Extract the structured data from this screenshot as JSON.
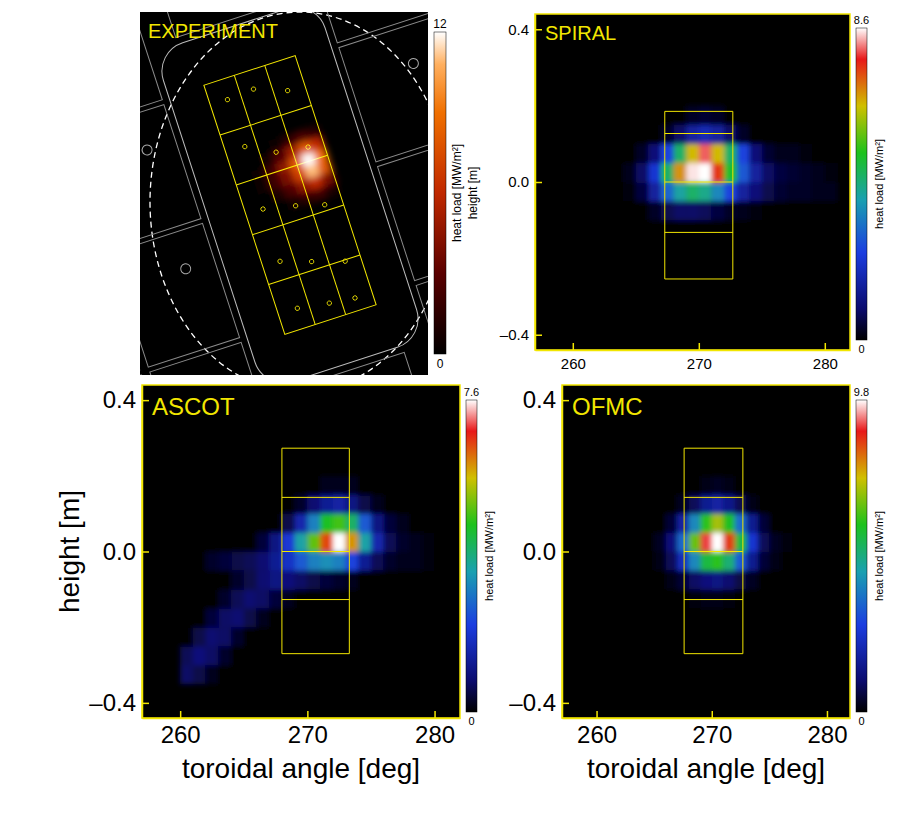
{
  "chart_data": [
    {
      "type": "image",
      "title": "EXPERIMENT",
      "tick_labels": false,
      "ylabel": "height [m]",
      "cells": [
        [
          0,
          0,
          0.5,
          1.5,
          2.5,
          1.5
        ],
        [
          0,
          0.8,
          2.5,
          5,
          8,
          6
        ],
        [
          0.5,
          2,
          4.5,
          8,
          12,
          9
        ],
        [
          0.5,
          2,
          4,
          7,
          11,
          8
        ],
        [
          0,
          1,
          2.5,
          4.5,
          6,
          4
        ],
        [
          0,
          0,
          0.8,
          1.5,
          2,
          1
        ]
      ],
      "colorbar": {
        "range": [
          0,
          12
        ],
        "ticks": [
          0,
          12
        ],
        "label": "heat load [MW/m²]"
      }
    },
    {
      "type": "heatmap",
      "title": "SPIRAL",
      "xlim": [
        257,
        282
      ],
      "ylim": [
        -0.44,
        0.44
      ],
      "xticks": [
        260,
        270,
        280
      ],
      "yticks": [
        {
          "value": -0.4,
          "label": "–0.4"
        },
        {
          "value": 0,
          "label": "0.0"
        },
        {
          "value": 0.4,
          "label": "0.4"
        }
      ],
      "x_edges": [
        260,
        261,
        262,
        263,
        264,
        265,
        266,
        267,
        268,
        269,
        270,
        271,
        272,
        273,
        274,
        275,
        276,
        277,
        278,
        279,
        280,
        281
      ],
      "y_edges": [
        -0.35,
        -0.3,
        -0.25,
        -0.2,
        -0.15,
        -0.1,
        -0.05,
        0,
        0.05,
        0.1,
        0.15,
        0.2
      ],
      "cells": [
        [
          0,
          0,
          0,
          0,
          0,
          0,
          0,
          0,
          0,
          0,
          0,
          0,
          0,
          0,
          0,
          0,
          0,
          0,
          0,
          0,
          0
        ],
        [
          0,
          0,
          0,
          0,
          0,
          0,
          0,
          0,
          0,
          0,
          0,
          0,
          0,
          0,
          0,
          0,
          0,
          0,
          0,
          0,
          0
        ],
        [
          0,
          0,
          0,
          0,
          0,
          0,
          0,
          0,
          0,
          0,
          0,
          0,
          0,
          0,
          0,
          0,
          0,
          0,
          0,
          0,
          0
        ],
        [
          0,
          0,
          0,
          0,
          0,
          0,
          0,
          0,
          0,
          0,
          0,
          0,
          0,
          0,
          0,
          0,
          0,
          0,
          0,
          0,
          0
        ],
        [
          0,
          0,
          0,
          0,
          0,
          0,
          0,
          0,
          0,
          0,
          0,
          0,
          0,
          0,
          0,
          0,
          0,
          0,
          0,
          0,
          0
        ],
        [
          0,
          0,
          0,
          0,
          0,
          0,
          0.3,
          0.6,
          0.8,
          0.8,
          0.7,
          0.5,
          0.3,
          0.2,
          0.1,
          0,
          0,
          0,
          0,
          0,
          0
        ],
        [
          0,
          0,
          0,
          0,
          0.1,
          0.5,
          1.5,
          3,
          4,
          4.5,
          4.2,
          3.5,
          2.5,
          1.5,
          1,
          0.6,
          0.4,
          0.3,
          0.3,
          0.2,
          0.2
        ],
        [
          0,
          0,
          0,
          0,
          0.2,
          0.8,
          2.2,
          4.5,
          6.8,
          8.5,
          8.6,
          7.5,
          5,
          2.8,
          1.5,
          0.8,
          0.5,
          0.4,
          0.3,
          0.2,
          0.1
        ],
        [
          0,
          0,
          0,
          0,
          0,
          0.3,
          1,
          2.5,
          4.5,
          6.5,
          8,
          6.5,
          4.5,
          2.5,
          1,
          0.4,
          0.2,
          0.2,
          0.1,
          0,
          0
        ],
        [
          0,
          0,
          0,
          0,
          0,
          0,
          0,
          0.3,
          0.8,
          1.5,
          1.8,
          1.5,
          0.8,
          0.3,
          0,
          0,
          0,
          0,
          0,
          0,
          0
        ],
        [
          0,
          0,
          0,
          0,
          0,
          0,
          0,
          0,
          0,
          0.3,
          0.4,
          0.3,
          0,
          0,
          0,
          0,
          0,
          0,
          0,
          0,
          0
        ]
      ],
      "tile": {
        "x": [
          267.3,
          272.7
        ],
        "y": [
          -0.254,
          -0.132,
          0,
          0.127,
          0.185
        ]
      },
      "colorbar": {
        "range": [
          0,
          8.6
        ],
        "ticks": [
          0,
          8.6
        ],
        "label": "heat load [MW/m²]"
      }
    },
    {
      "type": "heatmap",
      "title": "ASCOT",
      "xlabel": "toroidal angle [deg]",
      "ylabel": "height [m]",
      "xlim": [
        257,
        282
      ],
      "ylim": [
        -0.44,
        0.44
      ],
      "xticks": [
        260,
        270,
        280
      ],
      "yticks": [
        {
          "value": -0.4,
          "label": "–0.4"
        },
        {
          "value": 0,
          "label": "0.0"
        },
        {
          "value": 0.4,
          "label": "0.4"
        }
      ],
      "x_edges": [
        260,
        261,
        262,
        263,
        264,
        265,
        266,
        267,
        268,
        269,
        270,
        271,
        272,
        273,
        274,
        275,
        276,
        277,
        278,
        279,
        280,
        281
      ],
      "y_edges": [
        -0.35,
        -0.3,
        -0.25,
        -0.2,
        -0.15,
        -0.1,
        -0.05,
        0,
        0.05,
        0.1,
        0.15,
        0.2
      ],
      "cells": [
        [
          0.7,
          0.5,
          0.2,
          0,
          0,
          0,
          0,
          0,
          0,
          0,
          0,
          0,
          0,
          0,
          0,
          0,
          0,
          0,
          0,
          0,
          0
        ],
        [
          0.6,
          0.9,
          0.7,
          0.3,
          0,
          0,
          0,
          0,
          0,
          0,
          0,
          0,
          0,
          0,
          0,
          0,
          0,
          0,
          0,
          0,
          0
        ],
        [
          0,
          0.5,
          0.8,
          0.7,
          0.3,
          0,
          0,
          0,
          0,
          0,
          0,
          0,
          0,
          0,
          0,
          0,
          0,
          0,
          0,
          0,
          0
        ],
        [
          0,
          0,
          0.4,
          0.7,
          0.8,
          0.5,
          0.2,
          0,
          0,
          0,
          0,
          0,
          0,
          0,
          0,
          0,
          0,
          0,
          0,
          0,
          0
        ],
        [
          0,
          0,
          0,
          0.3,
          0.6,
          0.8,
          0.7,
          0.4,
          0.2,
          0,
          0,
          0,
          0,
          0,
          0,
          0,
          0,
          0,
          0,
          0,
          0
        ],
        [
          0,
          0,
          0,
          0,
          0.3,
          0.5,
          0.8,
          1,
          0.9,
          0.7,
          0.5,
          0.4,
          0.3,
          0.2,
          0,
          0,
          0,
          0,
          0,
          0,
          0
        ],
        [
          0,
          0,
          0.3,
          0.4,
          0.5,
          0.6,
          0.8,
          1.2,
          1.8,
          2.5,
          3,
          3.2,
          3,
          2.2,
          1.2,
          0.6,
          0.3,
          0.2,
          0.2,
          0.1,
          0
        ],
        [
          0,
          0,
          0,
          0,
          0,
          0,
          0.4,
          1,
          2,
          3.5,
          5,
          6.5,
          7.6,
          6,
          3.5,
          1.5,
          0.6,
          0.3,
          0.2,
          0.1,
          0
        ],
        [
          0,
          0,
          0,
          0,
          0,
          0,
          0,
          0,
          0.5,
          1.5,
          3,
          4.5,
          4.8,
          4,
          2.5,
          1,
          0.4,
          0.2,
          0,
          0,
          0
        ],
        [
          0,
          0,
          0,
          0,
          0,
          0,
          0,
          0,
          0,
          0.3,
          0.8,
          1.2,
          1.4,
          1,
          0.5,
          0.2,
          0,
          0,
          0,
          0,
          0
        ],
        [
          0,
          0,
          0,
          0,
          0,
          0,
          0,
          0,
          0,
          0,
          0,
          0.2,
          0.2,
          0.2,
          0,
          0,
          0,
          0,
          0,
          0,
          0
        ]
      ],
      "tile": {
        "x": [
          268,
          273.3
        ],
        "y": [
          -0.27,
          -0.127,
          0,
          0.143,
          0.273
        ]
      },
      "colorbar": {
        "range": [
          0,
          7.6
        ],
        "ticks": [
          0,
          7.6
        ],
        "label": "heat load [MW/m²]"
      }
    },
    {
      "type": "heatmap",
      "title": "OFMC",
      "xlabel": "toroidal angle [deg]",
      "xlim": [
        257,
        282
      ],
      "ylim": [
        -0.44,
        0.44
      ],
      "xticks": [
        260,
        270,
        280
      ],
      "yticks": [
        {
          "value": -0.4,
          "label": "–0.4"
        },
        {
          "value": 0,
          "label": "0.0"
        },
        {
          "value": 0.4,
          "label": "0.4"
        }
      ],
      "x_edges": [
        260,
        261,
        262,
        263,
        264,
        265,
        266,
        267,
        268,
        269,
        270,
        271,
        272,
        273,
        274,
        275,
        276,
        277,
        278,
        279,
        280,
        281
      ],
      "y_edges": [
        -0.35,
        -0.3,
        -0.25,
        -0.2,
        -0.15,
        -0.1,
        -0.05,
        0,
        0.05,
        0.1,
        0.15,
        0.2
      ],
      "cells": [
        [
          0,
          0,
          0,
          0,
          0,
          0,
          0,
          0,
          0,
          0,
          0,
          0,
          0,
          0,
          0,
          0,
          0,
          0,
          0,
          0,
          0
        ],
        [
          0,
          0,
          0,
          0,
          0,
          0,
          0,
          0,
          0,
          0,
          0,
          0,
          0,
          0,
          0,
          0,
          0,
          0,
          0,
          0,
          0
        ],
        [
          0,
          0,
          0,
          0,
          0,
          0,
          0,
          0,
          0,
          0,
          0,
          0,
          0,
          0,
          0,
          0,
          0,
          0,
          0,
          0,
          0
        ],
        [
          0,
          0,
          0,
          0,
          0,
          0,
          0,
          0,
          0,
          0,
          0,
          0,
          0,
          0,
          0,
          0,
          0,
          0,
          0,
          0,
          0
        ],
        [
          0,
          0,
          0,
          0,
          0,
          0,
          0,
          0,
          0.1,
          0.2,
          0.2,
          0.1,
          0,
          0,
          0,
          0,
          0,
          0,
          0,
          0,
          0
        ],
        [
          0,
          0,
          0,
          0,
          0,
          0,
          0.2,
          0.5,
          0.9,
          1.2,
          1.3,
          1,
          0.6,
          0.3,
          0,
          0,
          0,
          0,
          0,
          0,
          0
        ],
        [
          0,
          0,
          0,
          0,
          0,
          0.2,
          0.8,
          2.2,
          4,
          5.5,
          6,
          5,
          3.2,
          1.5,
          0.5,
          0.2,
          0,
          0,
          0,
          0,
          0
        ],
        [
          0,
          0,
          0,
          0,
          0,
          0.3,
          1.2,
          3.5,
          6.5,
          9,
          9.8,
          8.5,
          5.5,
          2.5,
          0.8,
          0.3,
          0.1,
          0,
          0,
          0,
          0
        ],
        [
          0,
          0,
          0,
          0,
          0,
          0,
          0.5,
          1.8,
          4,
          6,
          7,
          5.8,
          3.5,
          1.5,
          0.5,
          0,
          0,
          0,
          0,
          0,
          0
        ],
        [
          0,
          0,
          0,
          0,
          0,
          0,
          0,
          0.3,
          0.8,
          1.5,
          1.8,
          1.4,
          0.7,
          0.2,
          0,
          0,
          0,
          0,
          0,
          0,
          0
        ],
        [
          0,
          0,
          0,
          0,
          0,
          0,
          0,
          0,
          0,
          0.2,
          0.3,
          0.2,
          0,
          0,
          0,
          0,
          0,
          0,
          0,
          0,
          0
        ]
      ],
      "tile": {
        "x": [
          267.6,
          272.7
        ],
        "y": [
          -0.27,
          -0.127,
          0,
          0.143,
          0.273
        ]
      },
      "colorbar": {
        "range": [
          0,
          9.8
        ],
        "ticks": [
          0,
          9.8
        ],
        "label": "heat load [MW/m²]"
      }
    }
  ]
}
